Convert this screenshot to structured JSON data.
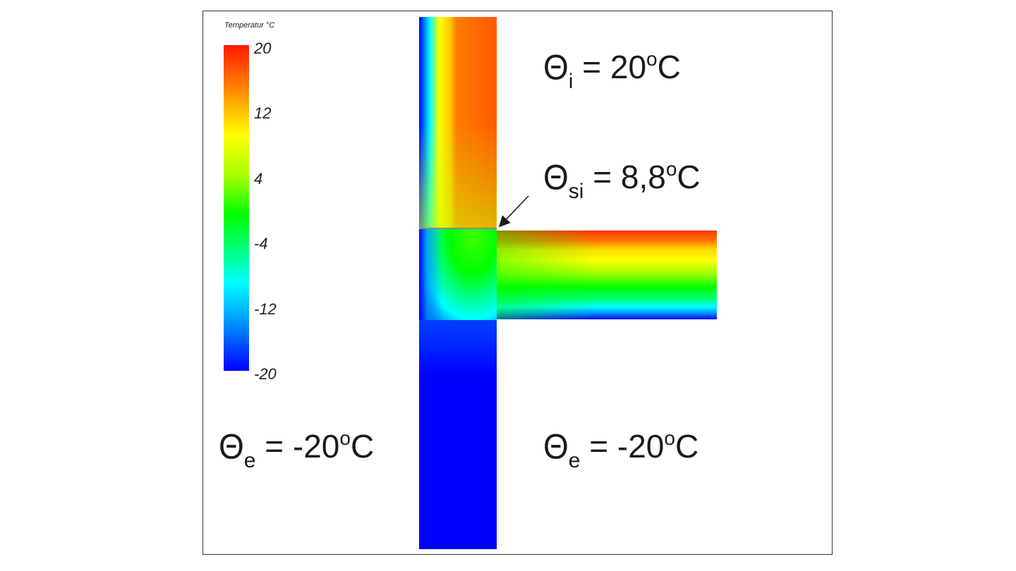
{
  "legend": {
    "title": "Temperatur °C",
    "ticks": [
      "20",
      "12",
      "4",
      "-4",
      "-12",
      "-20"
    ],
    "colors": [
      "#ff1a00",
      "#ff7a00",
      "#ffff00",
      "#00ff00",
      "#00ffff",
      "#0000ff"
    ]
  },
  "labels": {
    "theta_i": {
      "symbol": "Θ",
      "sub": "i",
      "eq": " = 20",
      "sup": "o",
      "unit": "C"
    },
    "theta_si": {
      "symbol": "Θ",
      "sub": "si",
      "eq": " = 8,8",
      "sup": "o",
      "unit": "C"
    },
    "theta_e_left": {
      "symbol": "Θ",
      "sub": "e",
      "eq": " = -20",
      "sup": "o",
      "unit": "C"
    },
    "theta_e_right": {
      "symbol": "Θ",
      "sub": "e",
      "eq": " = -20",
      "sup": "o",
      "unit": "C"
    }
  }
}
